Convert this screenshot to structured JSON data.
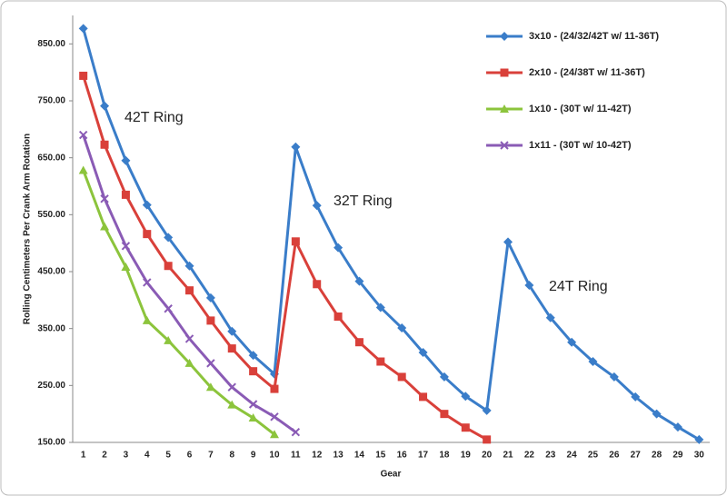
{
  "chart_data": {
    "type": "line",
    "x_label": "Gear",
    "y_label": "Rolling Centimeters Per Crank Arm Rotation",
    "categories": [
      "1",
      "2",
      "3",
      "4",
      "5",
      "6",
      "7",
      "8",
      "9",
      "10",
      "11",
      "12",
      "13",
      "14",
      "15",
      "16",
      "17",
      "18",
      "19",
      "20",
      "21",
      "22",
      "23",
      "24",
      "25",
      "26",
      "27",
      "28",
      "29",
      "30"
    ],
    "ylim": [
      150,
      900
    ],
    "yticks": [
      {
        "value": 150,
        "label": "150.00"
      },
      {
        "value": 250,
        "label": "250.00"
      },
      {
        "value": 350,
        "label": "350.00"
      },
      {
        "value": 450,
        "label": "450.00"
      },
      {
        "value": 550,
        "label": "550.00"
      },
      {
        "value": 650,
        "label": "650.00"
      },
      {
        "value": 750,
        "label": "750.00"
      },
      {
        "value": 850,
        "label": "850.00"
      }
    ],
    "grid": false,
    "legend": "upper right",
    "annotations": [
      "42T Ring",
      "32T Ring",
      "24T Ring"
    ],
    "series": [
      {
        "name": "3x10 - (24/32/42T w/ 11-36T)",
        "color": "#3a7dc9",
        "marker": "diamond",
        "values": [
          877,
          741,
          645,
          567,
          510,
          460,
          404,
          345,
          303,
          270,
          669,
          566,
          492,
          433,
          387,
          351,
          308,
          265,
          231,
          206,
          502,
          426,
          369,
          326,
          292,
          265,
          230,
          200,
          177,
          155
        ]
      },
      {
        "name": "2x10 - (24/38T w/ 11-36T)",
        "color": "#d9403a",
        "marker": "square",
        "values": [
          794,
          673,
          585,
          516,
          460,
          417,
          364,
          315,
          275,
          244,
          503,
          428,
          371,
          326,
          292,
          265,
          230,
          200,
          176,
          155,
          null,
          null,
          null,
          null,
          null,
          null,
          null,
          null,
          null,
          null
        ]
      },
      {
        "name": "1x10 - (30T w/ 11-42T)",
        "color": "#8cc43c",
        "marker": "triangle",
        "values": [
          628,
          529,
          458,
          364,
          329,
          289,
          247,
          216,
          193,
          164,
          null,
          null,
          null,
          null,
          null,
          null,
          null,
          null,
          null,
          null,
          null,
          null,
          null,
          null,
          null,
          null,
          null,
          null,
          null,
          null
        ]
      },
      {
        "name": "1x11 - (30T w/ 10-42T)",
        "color": "#8a5bb5",
        "marker": "x",
        "values": [
          690,
          578,
          495,
          431,
          385,
          332,
          289,
          247,
          217,
          195,
          168,
          null,
          null,
          null,
          null,
          null,
          null,
          null,
          null,
          null,
          null,
          null,
          null,
          null,
          null,
          null,
          null,
          null,
          null,
          null
        ]
      }
    ]
  }
}
